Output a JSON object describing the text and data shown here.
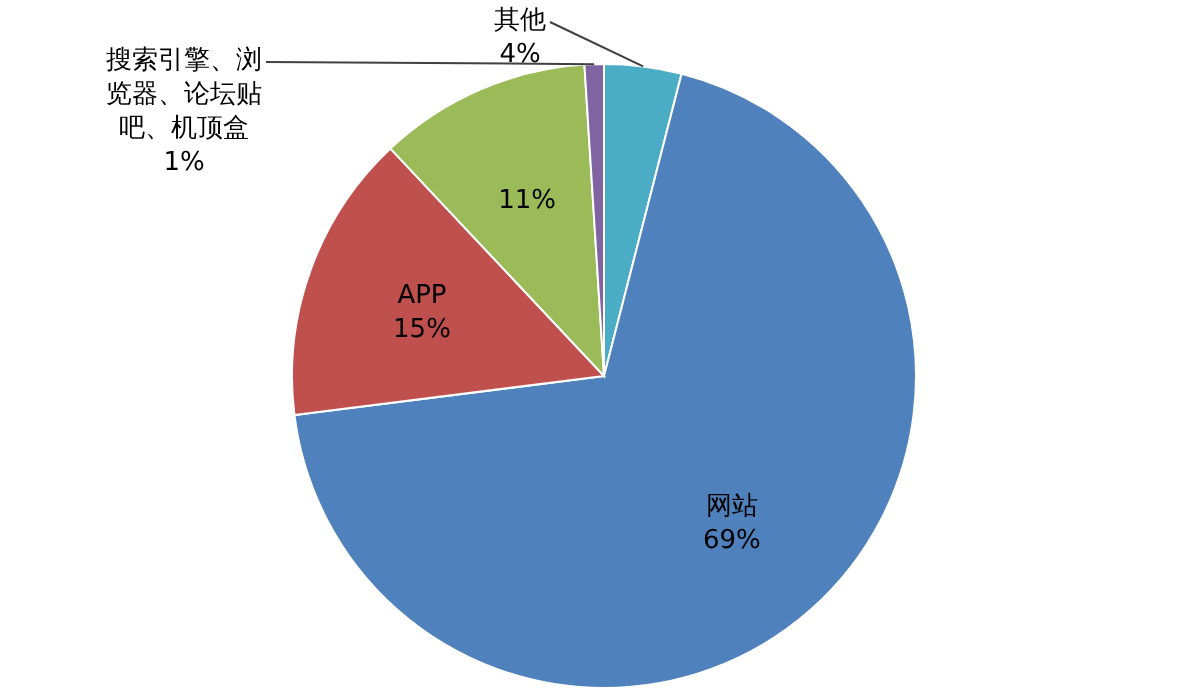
{
  "chart_data": {
    "type": "pie",
    "categories": [
      "其他",
      "网站",
      "APP",
      null,
      "搜索引擎、浏览器、论坛贴吧、机顶盒"
    ],
    "values": [
      4,
      69,
      15,
      11,
      1
    ],
    "colors": [
      "#4bacc6",
      "#4f81bd",
      "#c0504d",
      "#9bbb59",
      "#8064a2"
    ],
    "value_labels": [
      "4%",
      "69%",
      "15%",
      "11%",
      "1%"
    ]
  }
}
